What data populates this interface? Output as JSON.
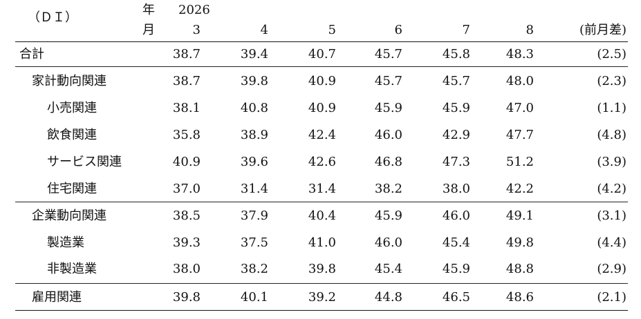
{
  "header": {
    "unit_label": "（ＤＩ）",
    "year_label": "年",
    "month_label": "月",
    "year_value": "2026",
    "months": [
      "3",
      "4",
      "5",
      "6",
      "7",
      "8"
    ],
    "diff_label": "(前月差)"
  },
  "rows": [
    {
      "label": "合計",
      "values": [
        "38.7",
        "39.4",
        "40.7",
        "45.7",
        "45.8",
        "48.3"
      ],
      "diff": "(2.5)"
    },
    {
      "label": "家計動向関連",
      "values": [
        "38.7",
        "39.8",
        "40.9",
        "45.7",
        "45.7",
        "48.0"
      ],
      "diff": "(2.3)"
    },
    {
      "label": "小売関連",
      "values": [
        "38.1",
        "40.8",
        "40.9",
        "45.9",
        "45.9",
        "47.0"
      ],
      "diff": "(1.1)"
    },
    {
      "label": "飲食関連",
      "values": [
        "35.8",
        "38.9",
        "42.4",
        "46.0",
        "42.9",
        "47.7"
      ],
      "diff": "(4.8)"
    },
    {
      "label": "サービス関連",
      "values": [
        "40.9",
        "39.6",
        "42.6",
        "46.8",
        "47.3",
        "51.2"
      ],
      "diff": "(3.9)"
    },
    {
      "label": "住宅関連",
      "values": [
        "37.0",
        "31.4",
        "31.4",
        "38.2",
        "38.0",
        "42.2"
      ],
      "diff": "(4.2)"
    },
    {
      "label": "企業動向関連",
      "values": [
        "38.5",
        "37.9",
        "40.4",
        "45.9",
        "46.0",
        "49.1"
      ],
      "diff": "(3.1)"
    },
    {
      "label": "製造業",
      "values": [
        "39.3",
        "37.5",
        "41.0",
        "46.0",
        "45.4",
        "49.8"
      ],
      "diff": "(4.4)"
    },
    {
      "label": "非製造業",
      "values": [
        "38.0",
        "38.2",
        "39.8",
        "45.4",
        "45.9",
        "48.8"
      ],
      "diff": "(2.9)"
    },
    {
      "label": "雇用関連",
      "values": [
        "39.8",
        "40.1",
        "39.2",
        "44.8",
        "46.5",
        "48.6"
      ],
      "diff": "(2.1)"
    }
  ]
}
